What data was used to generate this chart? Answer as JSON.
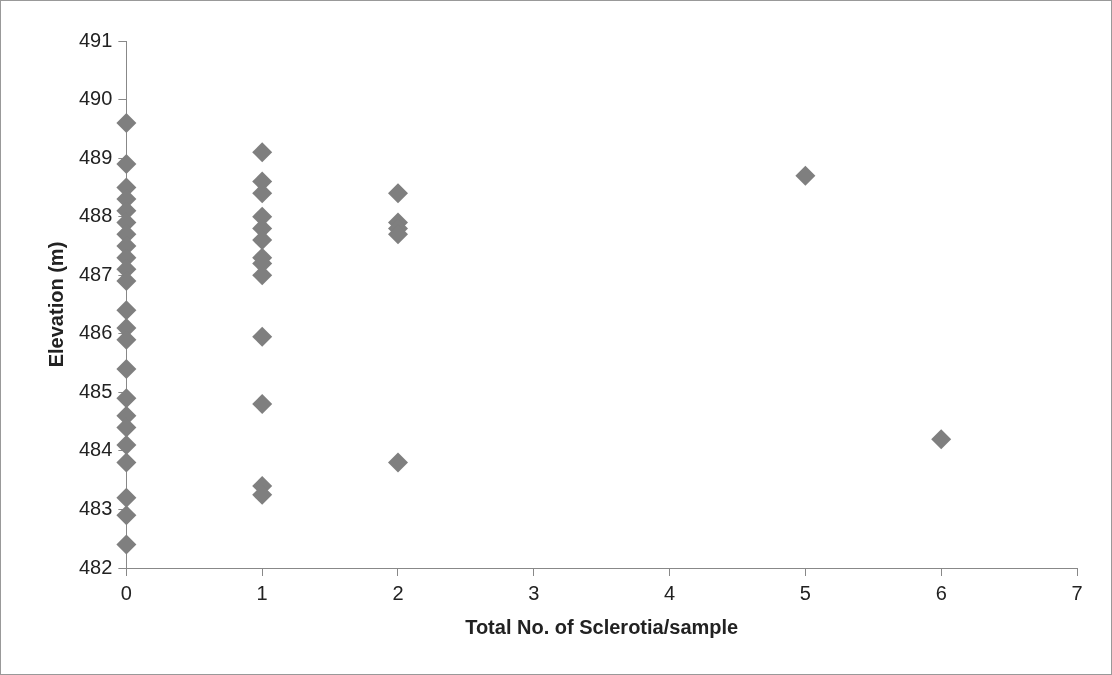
{
  "chart_data": {
    "type": "scatter",
    "xlabel": "Total No. of Sclerotia/sample",
    "ylabel": "Elevation (m)",
    "xlim": [
      0,
      7
    ],
    "xticks": [
      0,
      1,
      2,
      3,
      4,
      5,
      6,
      7
    ],
    "ylim": [
      482,
      491
    ],
    "yticks": [
      482,
      483,
      484,
      485,
      486,
      487,
      488,
      489,
      490,
      491
    ],
    "grid": false,
    "legend": false,
    "marker": "diamond",
    "series": [
      {
        "color": "#7f7f7f",
        "x": [
          0,
          0,
          0,
          0,
          0,
          0,
          0,
          0,
          0,
          0,
          0,
          0,
          0,
          0,
          0,
          0,
          0,
          0,
          0,
          0,
          0,
          0,
          0,
          1,
          1,
          1,
          1,
          1,
          1,
          1,
          1,
          1,
          1,
          1,
          1,
          1,
          2,
          2,
          2,
          2,
          2,
          5,
          6
        ],
        "values": [
          489.6,
          488.9,
          488.5,
          488.3,
          488.1,
          487.9,
          487.7,
          487.5,
          487.3,
          487.1,
          486.9,
          486.4,
          486.1,
          485.9,
          485.4,
          484.9,
          484.6,
          484.4,
          484.1,
          483.8,
          483.2,
          482.9,
          482.4,
          489.1,
          488.6,
          488.4,
          488.0,
          487.8,
          487.6,
          487.3,
          487.2,
          487.0,
          485.95,
          484.8,
          483.4,
          483.25,
          488.4,
          487.9,
          487.8,
          487.7,
          483.8,
          488.7,
          484.2
        ]
      }
    ]
  }
}
